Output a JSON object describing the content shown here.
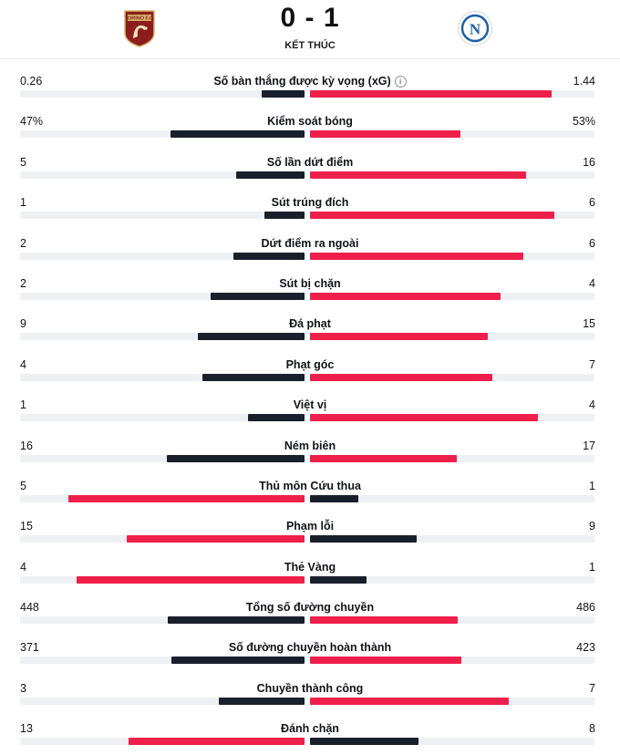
{
  "match": {
    "score": "0 - 1",
    "status": "KẾT THÚC",
    "home_logo_text": "TORINO F.C.",
    "away_logo_text": "N"
  },
  "colors": {
    "bar_dark": "#1a1f2c",
    "bar_red": "#ef1f4b",
    "track": "#eef0f3"
  },
  "stats": [
    {
      "label": "Số bàn thắng được kỳ vọng (xG)",
      "home": "0.26",
      "away": "1.44",
      "home_share": 0.15,
      "away_share": 0.85,
      "info": true,
      "home_color": "dark",
      "away_color": "red"
    },
    {
      "label": "Kiểm soát bóng",
      "home": "47%",
      "away": "53%",
      "home_share": 0.47,
      "away_share": 0.53,
      "home_color": "dark",
      "away_color": "red"
    },
    {
      "label": "Số lần dứt điểm",
      "home": "5",
      "away": "16",
      "home_share": 0.24,
      "away_share": 0.76,
      "home_color": "dark",
      "away_color": "red"
    },
    {
      "label": "Sút trúng đích",
      "home": "1",
      "away": "6",
      "home_share": 0.14,
      "away_share": 0.86,
      "home_color": "dark",
      "away_color": "red"
    },
    {
      "label": "Dứt điểm ra ngoài",
      "home": "2",
      "away": "6",
      "home_share": 0.25,
      "away_share": 0.75,
      "home_color": "dark",
      "away_color": "red"
    },
    {
      "label": "Sút bị chặn",
      "home": "2",
      "away": "4",
      "home_share": 0.33,
      "away_share": 0.67,
      "home_color": "dark",
      "away_color": "red"
    },
    {
      "label": "Đá phạt",
      "home": "9",
      "away": "15",
      "home_share": 0.375,
      "away_share": 0.625,
      "home_color": "dark",
      "away_color": "red"
    },
    {
      "label": "Phạt góc",
      "home": "4",
      "away": "7",
      "home_share": 0.36,
      "away_share": 0.64,
      "home_color": "dark",
      "away_color": "red"
    },
    {
      "label": "Việt vị",
      "home": "1",
      "away": "4",
      "home_share": 0.2,
      "away_share": 0.8,
      "home_color": "dark",
      "away_color": "red"
    },
    {
      "label": "Ném biên",
      "home": "16",
      "away": "17",
      "home_share": 0.485,
      "away_share": 0.515,
      "home_color": "dark",
      "away_color": "red"
    },
    {
      "label": "Thủ môn Cứu thua",
      "home": "5",
      "away": "1",
      "home_share": 0.83,
      "away_share": 0.17,
      "home_color": "red",
      "away_color": "dark"
    },
    {
      "label": "Phạm lỗi",
      "home": "15",
      "away": "9",
      "home_share": 0.625,
      "away_share": 0.375,
      "home_color": "red",
      "away_color": "dark"
    },
    {
      "label": "Thẻ Vàng",
      "home": "4",
      "away": "1",
      "home_share": 0.8,
      "away_share": 0.2,
      "home_color": "red",
      "away_color": "dark"
    },
    {
      "label": "Tổng số đường chuyền",
      "home": "448",
      "away": "486",
      "home_share": 0.48,
      "away_share": 0.52,
      "home_color": "dark",
      "away_color": "red"
    },
    {
      "label": "Số đường chuyền hoàn thành",
      "home": "371",
      "away": "423",
      "home_share": 0.467,
      "away_share": 0.533,
      "home_color": "dark",
      "away_color": "red"
    },
    {
      "label": "Chuyền thành công",
      "home": "3",
      "away": "7",
      "home_share": 0.3,
      "away_share": 0.7,
      "home_color": "dark",
      "away_color": "red"
    },
    {
      "label": "Đánh chặn",
      "home": "13",
      "away": "8",
      "home_share": 0.62,
      "away_share": 0.38,
      "home_color": "red",
      "away_color": "dark"
    }
  ]
}
